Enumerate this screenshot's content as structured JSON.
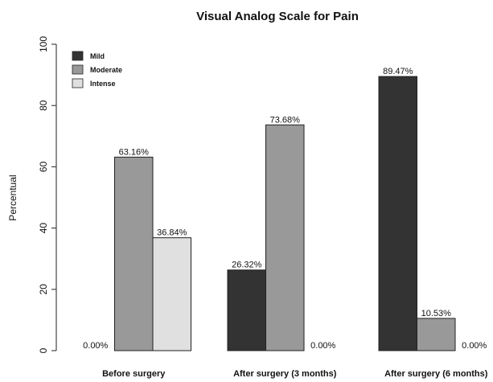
{
  "chart_data": {
    "type": "bar",
    "title": "Visual Analog Scale for Pain",
    "ylabel": "Percentual",
    "categories": [
      "Before surgery",
      "After surgery (3 months)",
      "After surgery (6 months)"
    ],
    "series": [
      {
        "name": "Mild",
        "color": "#333333",
        "values": [
          0,
          26.32,
          89.47
        ],
        "value_labels": [
          "0.00%",
          "26.32%",
          "89.47%"
        ]
      },
      {
        "name": "Moderate",
        "color": "#999999",
        "values": [
          63.16,
          73.68,
          10.53
        ],
        "value_labels": [
          "63.16%",
          "73.68%",
          "10.53%"
        ]
      },
      {
        "name": "Intense",
        "color": "#e0e0e0",
        "values": [
          36.84,
          0,
          0
        ],
        "value_labels": [
          "36.84%",
          "0.00%",
          "0.00%"
        ]
      }
    ],
    "ylim": [
      0,
      100
    ],
    "yticks": [
      0,
      20,
      40,
      60,
      80,
      100
    ],
    "grid": false,
    "legend": "top-left"
  }
}
